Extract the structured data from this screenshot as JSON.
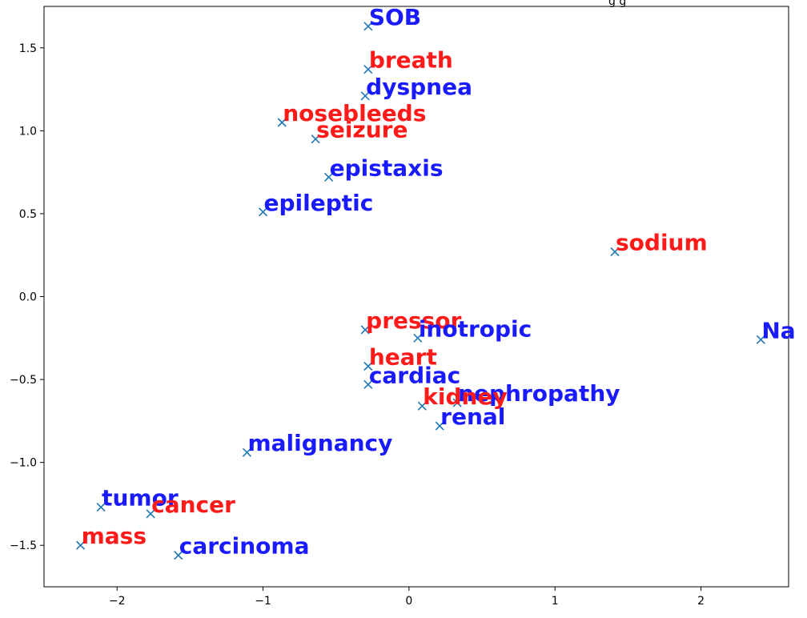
{
  "chart_data": {
    "type": "scatter",
    "title_visible_fragment": "g   g",
    "xlim": [
      -2.5,
      2.6
    ],
    "ylim": [
      -1.75,
      1.75
    ],
    "x_ticks": [
      -2,
      -1,
      0,
      1,
      2
    ],
    "x_tick_labels": [
      "−2",
      "−1",
      "0",
      "1",
      "2"
    ],
    "y_ticks": [
      -1.5,
      -1.0,
      -0.5,
      0.0,
      0.5,
      1.0,
      1.5
    ],
    "y_tick_labels": [
      "−1.5",
      "−1.0",
      "−0.5",
      "0.0",
      "0.5",
      "1.0",
      "1.5"
    ],
    "grid": false,
    "marker": "x",
    "marker_color": "#1f77b4",
    "label_colors": {
      "blue": "#1a1aff",
      "red": "#ff1a1a"
    },
    "points": [
      {
        "label": "SOB",
        "x": -0.28,
        "y": 1.63,
        "group": "blue"
      },
      {
        "label": "breath",
        "x": -0.28,
        "y": 1.37,
        "group": "red"
      },
      {
        "label": "dyspnea",
        "x": -0.3,
        "y": 1.21,
        "group": "blue"
      },
      {
        "label": "nosebleeds",
        "x": -0.87,
        "y": 1.05,
        "group": "red"
      },
      {
        "label": "seizure",
        "x": -0.64,
        "y": 0.95,
        "group": "red"
      },
      {
        "label": "epistaxis",
        "x": -0.55,
        "y": 0.72,
        "group": "blue"
      },
      {
        "label": "epileptic",
        "x": -1.0,
        "y": 0.51,
        "group": "blue"
      },
      {
        "label": "sodium",
        "x": 1.41,
        "y": 0.27,
        "group": "red"
      },
      {
        "label": "pressor",
        "x": -0.3,
        "y": -0.2,
        "group": "red"
      },
      {
        "label": "inotropic",
        "x": 0.06,
        "y": -0.25,
        "group": "blue"
      },
      {
        "label": "Na",
        "x": 2.41,
        "y": -0.26,
        "group": "blue"
      },
      {
        "label": "heart",
        "x": -0.28,
        "y": -0.42,
        "group": "red"
      },
      {
        "label": "cardiac",
        "x": -0.28,
        "y": -0.53,
        "group": "blue"
      },
      {
        "label": "nephropathy",
        "x": 0.33,
        "y": -0.64,
        "group": "blue"
      },
      {
        "label": "kidney",
        "x": 0.09,
        "y": -0.66,
        "group": "red"
      },
      {
        "label": "renal",
        "x": 0.21,
        "y": -0.78,
        "group": "blue"
      },
      {
        "label": "malignancy",
        "x": -1.11,
        "y": -0.94,
        "group": "blue"
      },
      {
        "label": "tumor",
        "x": -2.11,
        "y": -1.27,
        "group": "blue"
      },
      {
        "label": "cancer",
        "x": -1.77,
        "y": -1.31,
        "group": "red"
      },
      {
        "label": "mass",
        "x": -2.25,
        "y": -1.5,
        "group": "red"
      },
      {
        "label": "carcinoma",
        "x": -1.58,
        "y": -1.56,
        "group": "blue"
      }
    ]
  }
}
